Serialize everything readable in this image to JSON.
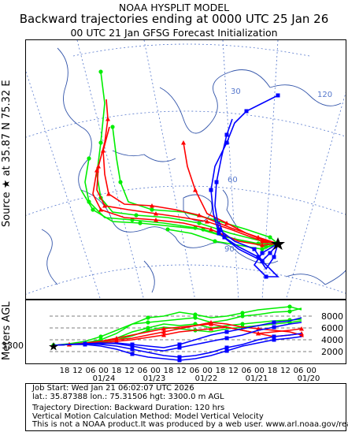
{
  "header": {
    "model_name": "NOAA HYSPLIT MODEL",
    "title": "Backward trajectories ending at 0000 UTC 25 Jan 26",
    "subtitle": "00 UTC 21 Jan    GFSG  Forecast Initialization"
  },
  "side_label": "Source ★ at  35.87 N   75.32 E",
  "height_axis_label": "Meters AGL",
  "start_height_label": "3300",
  "map": {
    "lat_labels": [
      "30",
      "60",
      "90"
    ],
    "lon_labels": [
      "120"
    ],
    "colors": {
      "red": "#ff0000",
      "blue": "#0000ff",
      "green": "#00ee00",
      "grid": "#5577cc",
      "coast": "#3355aa"
    }
  },
  "height_panel": {
    "ytick_labels": [
      "8000",
      "6000",
      "4000",
      "2000"
    ],
    "time_ticks": [
      "18",
      "12",
      "06",
      "00",
      "18",
      "12",
      "06",
      "00",
      "18",
      "12",
      "06",
      "00",
      "18",
      "12",
      "06",
      "00",
      "18",
      "12",
      "06",
      "00"
    ],
    "date_labels": [
      "01/24",
      "01/23",
      "01/22",
      "01/21",
      "01/20"
    ]
  },
  "footer": {
    "line1": "Job Start: Wed Jan 21 06:02:07 UTC 2026",
    "line2": "lat.: 35.87388   lon.: 75.31506   hgt: 3300.0 m AGL",
    "line3": "Trajectory Direction: Backward          Duration: 120 hrs",
    "line4": "Vertical Motion Calculation Method: Model Vertical Velocity",
    "line5": "This is not a NOAA product.It was produced by a web user. www.arl.noaa.gov/ready"
  }
}
